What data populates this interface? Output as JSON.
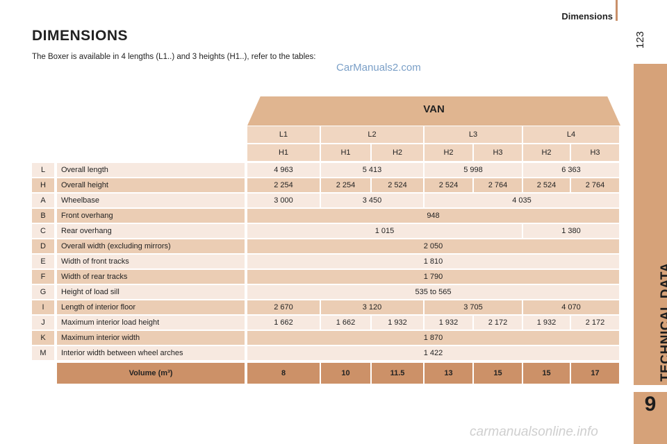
{
  "header": {
    "section": "Dimensions",
    "page_number": "123"
  },
  "sidebar": {
    "label": "TECHNICAL DATA",
    "chapter": "9"
  },
  "title": "DIMENSIONS",
  "intro": "The Boxer is available in 4 lengths (L1..) and 3 heights (H1..), refer to the tables:",
  "watermark": "CarManuals2.com",
  "footer_watermark": "carmanualsonline.info",
  "table": {
    "group_header": "VAN",
    "lengths": [
      "L1",
      "L2",
      "L3",
      "L4"
    ],
    "heights": [
      "H1",
      "H1",
      "H2",
      "H2",
      "H3",
      "H2",
      "H3"
    ],
    "rows": [
      {
        "code": "L",
        "label": "Overall length",
        "values": [
          "4 963",
          "5 413",
          "5 998",
          "6 363"
        ]
      },
      {
        "code": "H",
        "label": "Overall height",
        "values": [
          "2 254",
          "2 254",
          "2 524",
          "2 524",
          "2 764",
          "2 524",
          "2 764"
        ]
      },
      {
        "code": "A",
        "label": "Wheelbase",
        "values": [
          "3 000",
          "3 450",
          "4 035"
        ]
      },
      {
        "code": "B",
        "label": "Front overhang",
        "values": [
          "948"
        ]
      },
      {
        "code": "C",
        "label": "Rear overhang",
        "values": [
          "1 015",
          "1 380"
        ]
      },
      {
        "code": "D",
        "label": "Overall width (excluding mirrors)",
        "values": [
          "2 050"
        ]
      },
      {
        "code": "E",
        "label": "Width of front tracks",
        "values": [
          "1 810"
        ]
      },
      {
        "code": "F",
        "label": "Width of rear tracks",
        "values": [
          "1 790"
        ]
      },
      {
        "code": "G",
        "label": "Height of load sill",
        "values": [
          "535 to 565"
        ]
      },
      {
        "code": "I",
        "label": "Length of interior floor",
        "values": [
          "2 670",
          "3 120",
          "3 705",
          "4 070"
        ]
      },
      {
        "code": "J",
        "label": "Maximum interior load height",
        "values": [
          "1 662",
          "1 662",
          "1 932",
          "1 932",
          "2 172",
          "1 932",
          "2 172"
        ]
      },
      {
        "code": "K",
        "label": "Maximum interior width",
        "values": [
          "1 870"
        ]
      },
      {
        "code": "M",
        "label": "Interior width between wheel arches",
        "values": [
          "1 422"
        ]
      }
    ],
    "volume": {
      "label": "Volume (m³)",
      "values": [
        "8",
        "10",
        "11.5",
        "13",
        "15",
        "15",
        "17"
      ]
    }
  }
}
